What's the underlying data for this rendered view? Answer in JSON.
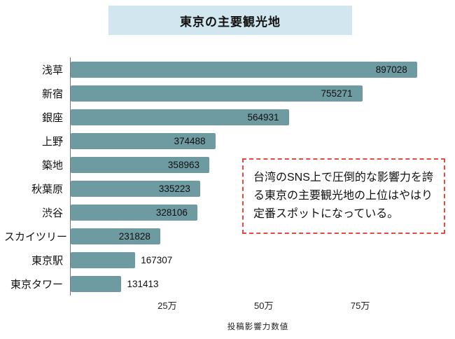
{
  "header": {
    "title": "東京の主要観光地"
  },
  "annotation": {
    "text": "台湾のSNS上で圧倒的な影響力を誇る東京の主要観光地の上位はやはり定番スポットになっている。"
  },
  "colors": {
    "bar": "#6e9aa2",
    "title_background": "#d2e6ef",
    "annotation_border": "#e04a3f"
  },
  "chart_data": {
    "type": "bar",
    "orientation": "horizontal",
    "title": "東京の主要観光地",
    "xlabel": "投稿影響力数値",
    "ylabel": "",
    "categories": [
      "浅草",
      "新宿",
      "銀座",
      "上野",
      "築地",
      "秋葉原",
      "渋谷",
      "スカイツリー",
      "東京駅",
      "東京タワー"
    ],
    "values": [
      897028,
      755271,
      564931,
      374488,
      358963,
      335223,
      328106,
      231828,
      167307,
      131413
    ],
    "xticks": [
      {
        "value": 250000,
        "label": "25万"
      },
      {
        "value": 500000,
        "label": "50万"
      },
      {
        "value": 750000,
        "label": "75万"
      }
    ],
    "xlim": [
      0,
      970000
    ],
    "grid": false,
    "legend": false,
    "value_labels": true,
    "label_outside_threshold": 200000
  }
}
